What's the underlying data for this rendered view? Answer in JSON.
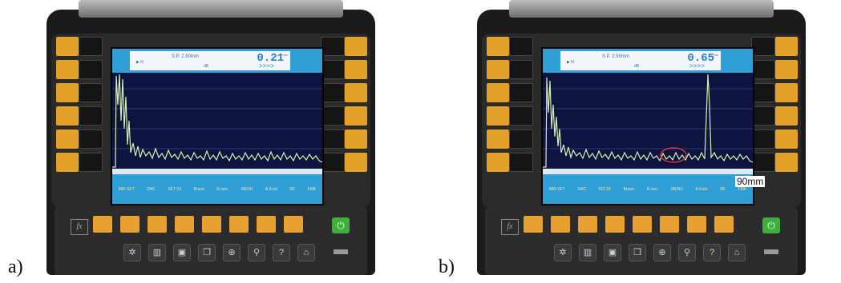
{
  "panels": [
    {
      "label": "a)",
      "reading": "0.21",
      "reading_unit": "mm",
      "header_small": "▶ N",
      "header_sp": "S.P.  2.50mm",
      "header_mark": "dB",
      "header_arrows": ">>>>",
      "softkeys": [
        "MW SET",
        "DAC",
        "SET 02",
        "Brane",
        "R.verr.",
        "MENU",
        "A.Kont",
        "RF",
        "FMK"
      ],
      "icons": [
        "gear-icon",
        "chart-icon",
        "save-icon",
        "copy-icon",
        "crosshair-icon",
        "search-icon",
        "help-icon",
        "home-icon"
      ]
    },
    {
      "label": "b)",
      "reading": "0.65",
      "reading_unit": "mm",
      "header_small": "▶ N",
      "header_sp": "S.P.  2.50mm",
      "header_mark": "dB",
      "header_arrows": ">>>>",
      "softkeys": [
        "MW SET",
        "DAC",
        "PIC 01",
        "Brane",
        "R.verr.",
        "MENU",
        "A.Kont",
        "RF",
        "FMK"
      ],
      "icons": [
        "gear-icon",
        "chart-icon",
        "save-icon",
        "copy-icon",
        "crosshair-icon",
        "search-icon",
        "help-icon",
        "home-icon"
      ],
      "annotation": "90mm"
    }
  ],
  "colors": {
    "screen_bg": "#0f1340",
    "header": "#2f9fd6",
    "trace": "#d8f0b0",
    "key": "#e4a12a",
    "power": "#3fae3f",
    "annotation_circle": "#d23a3a"
  }
}
